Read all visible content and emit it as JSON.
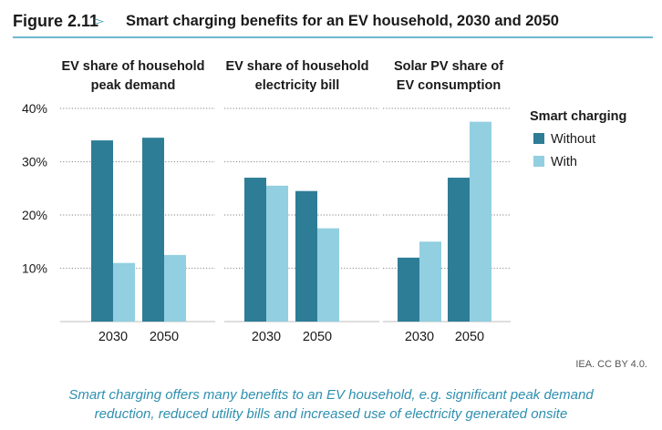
{
  "figure": {
    "number": "Figure 2.11",
    "arrow": "▻",
    "title": "Smart charging benefits for an EV household, 2030 and 2050"
  },
  "colors": {
    "without": "#2e7d96",
    "with": "#92cfe0",
    "accent": "#2e8fb0",
    "gridline": "#9a9a9a"
  },
  "chart_data": {
    "type": "bar",
    "y_ticks": [
      10,
      20,
      30,
      40
    ],
    "y_tick_labels": [
      "10%",
      "20%",
      "30%",
      "40%"
    ],
    "ylim": [
      0,
      40
    ],
    "legend": {
      "title": "Smart charging",
      "entries": [
        "Without",
        "With"
      ],
      "placement": "right"
    },
    "panels": [
      {
        "title_lines": [
          "EV share of household",
          "peak demand"
        ],
        "categories": [
          "2030",
          "2050"
        ],
        "series": [
          {
            "name": "Without",
            "values": [
              34,
              34.5
            ]
          },
          {
            "name": "With",
            "values": [
              11,
              12.5
            ]
          }
        ]
      },
      {
        "title_lines": [
          "EV share of household",
          "electricity bill"
        ],
        "categories": [
          "2030",
          "2050"
        ],
        "series": [
          {
            "name": "Without",
            "values": [
              27,
              24.5
            ]
          },
          {
            "name": "With",
            "values": [
              25.5,
              17.5
            ]
          }
        ]
      },
      {
        "title_lines": [
          "Solar PV share of",
          "EV consumption"
        ],
        "categories": [
          "2030",
          "2050"
        ],
        "series": [
          {
            "name": "Without",
            "values": [
              12,
              27
            ]
          },
          {
            "name": "With",
            "values": [
              15,
              37.5
            ]
          }
        ]
      }
    ]
  },
  "credit": "IEA. CC BY 4.0.",
  "caption": {
    "line1": "Smart charging offers many benefits to an EV household, e.g. significant peak demand",
    "line2": "reduction, reduced utility bills and increased use of electricity generated onsite"
  }
}
